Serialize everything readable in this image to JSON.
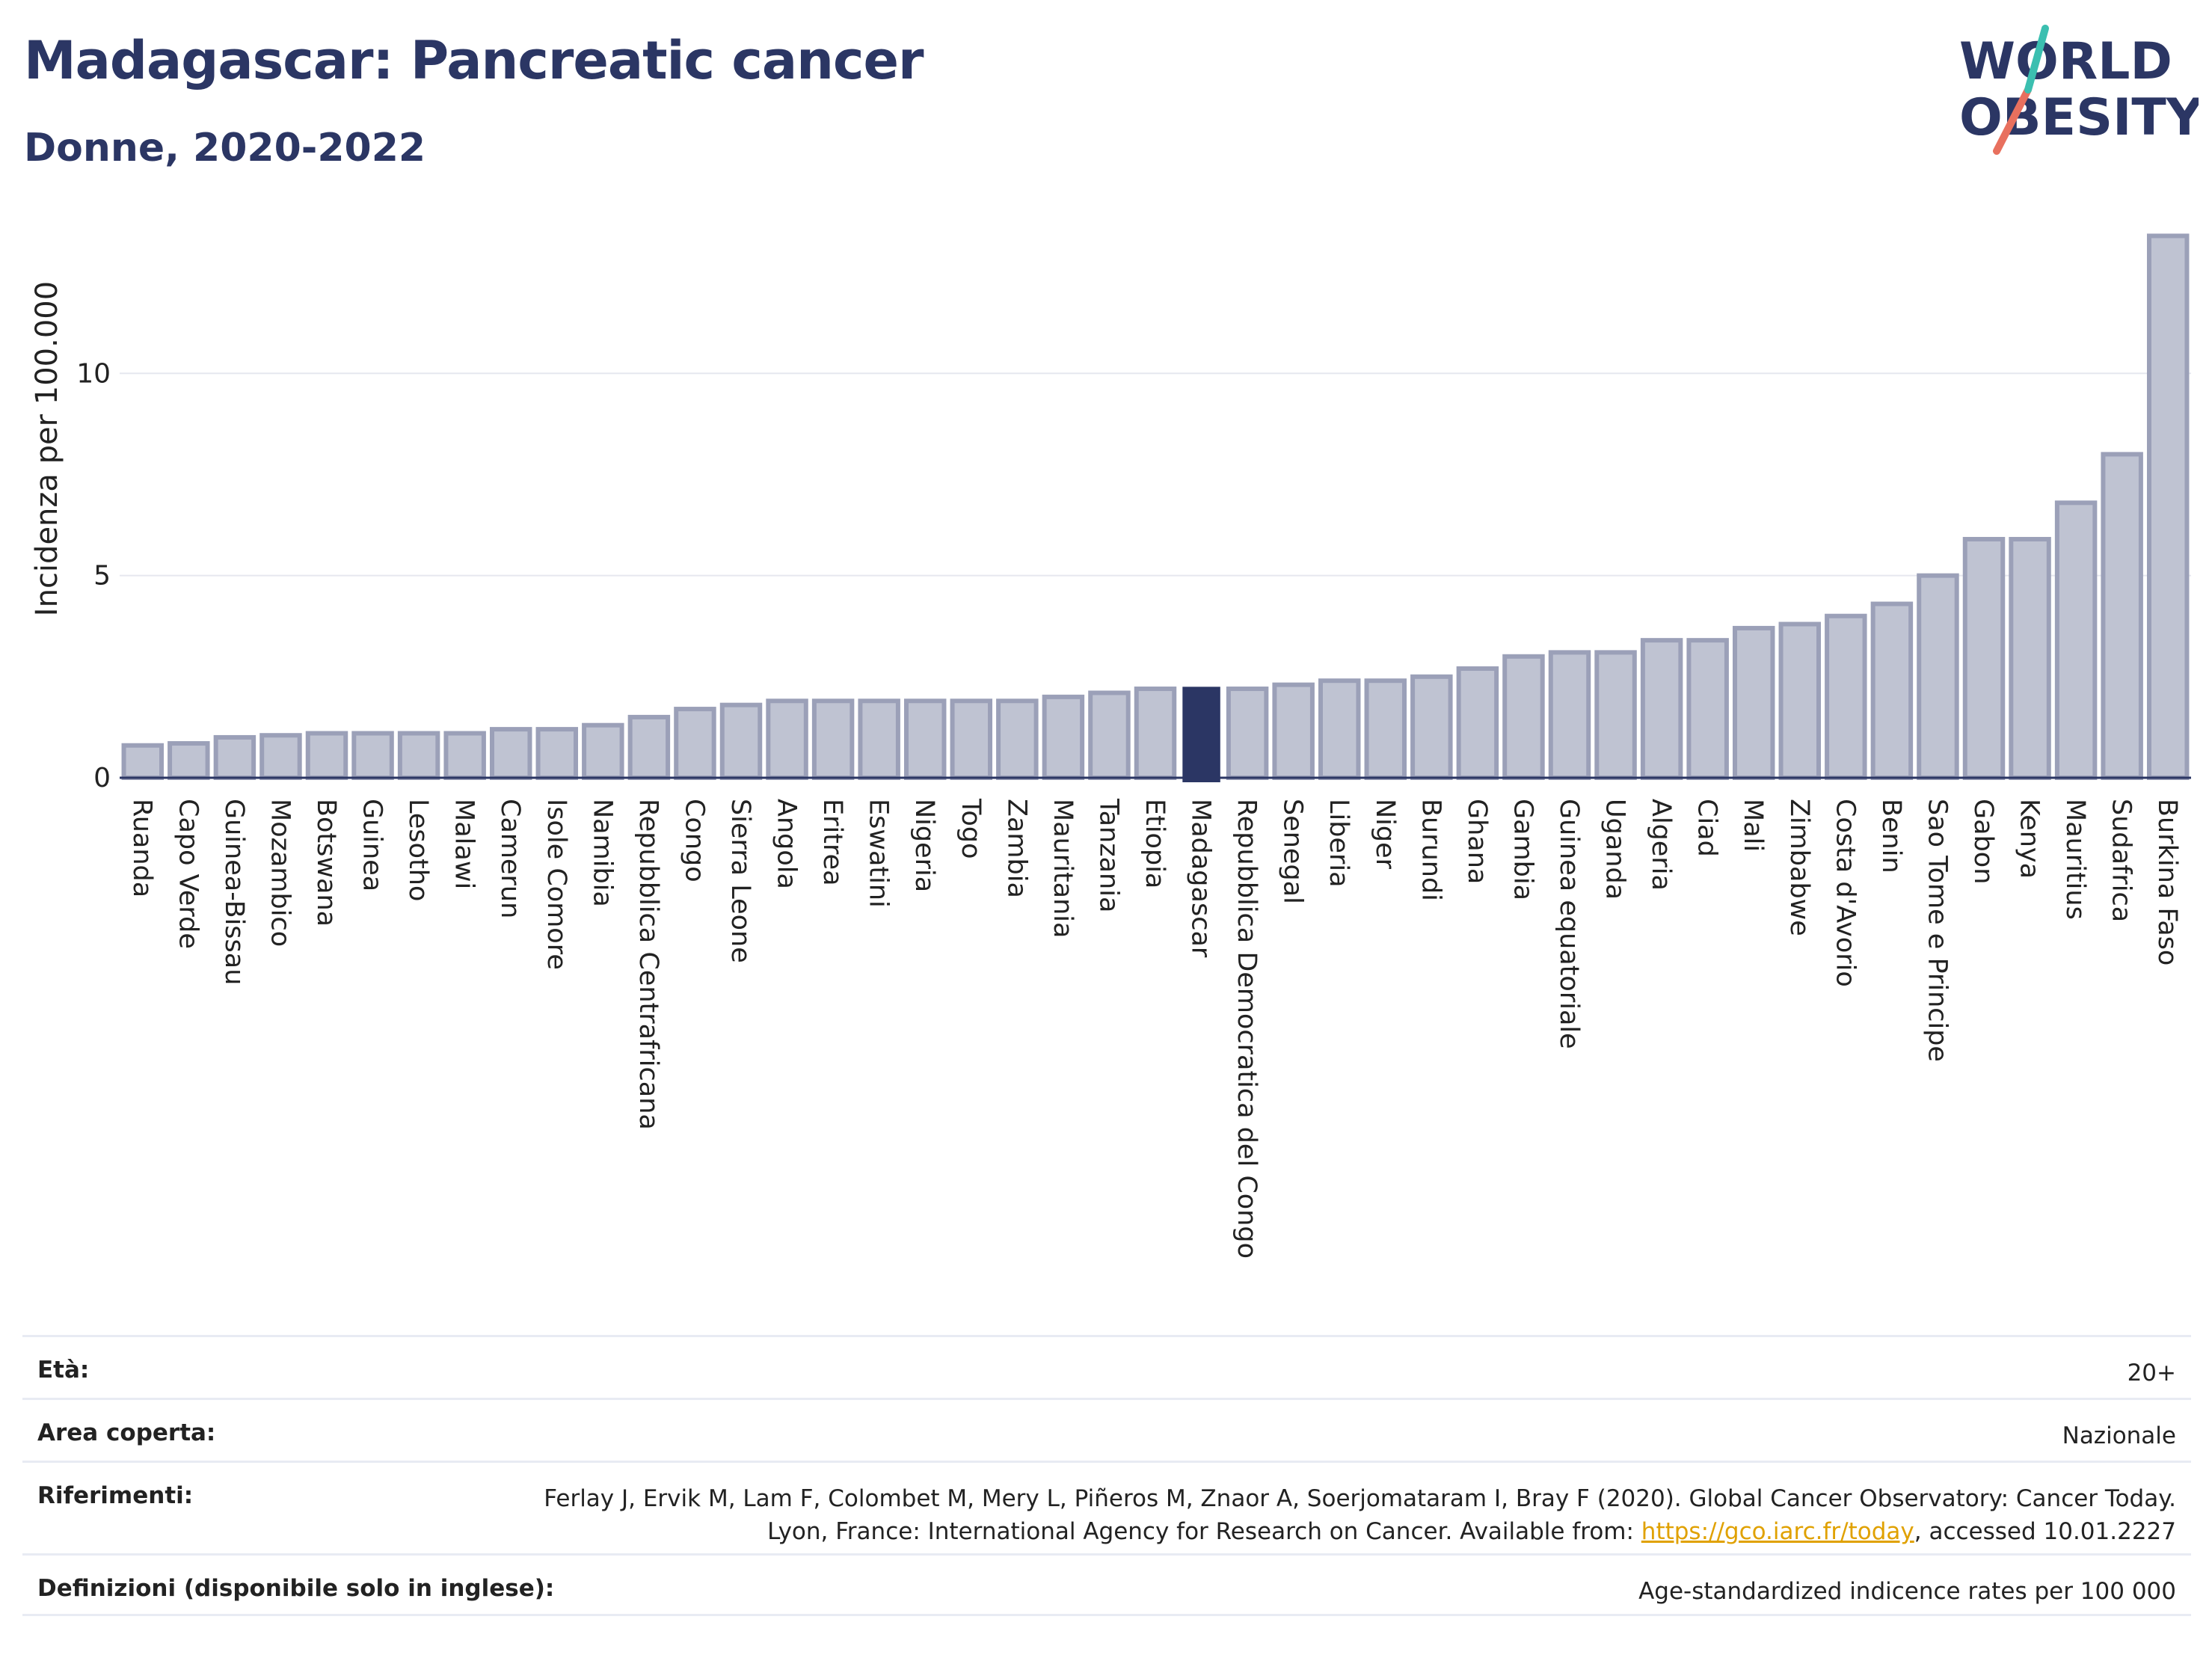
{
  "header": {
    "title": "Madagascar: Pancreatic cancer",
    "subtitle": "Donne, 2020-2022"
  },
  "logo": {
    "line1": "WORLD",
    "line2": "OBESITY"
  },
  "colors": {
    "bar_fill": "#bfc3d2",
    "bar_stroke": "#9ba0b8",
    "highlight": "#2b3664",
    "title": "#2b3664",
    "grid": "#e6e8ef",
    "logo_teal": "#3bbfb0",
    "logo_coral": "#e8705e",
    "link": "#e0a100"
  },
  "chart_data": {
    "type": "bar",
    "ylabel": "Incidenza per 100.000",
    "xlabel": "",
    "ylim": [
      0,
      13.5
    ],
    "yticks": [
      0,
      5,
      10
    ],
    "grid": true,
    "highlight": "Madagascar",
    "categories": [
      "Ruanda",
      "Capo Verde",
      "Guinea-Bissau",
      "Mozambico",
      "Botswana",
      "Guinea",
      "Lesotho",
      "Malawi",
      "Camerun",
      "Isole Comore",
      "Namibia",
      "Repubblica Centrafricana",
      "Congo",
      "Sierra Leone",
      "Angola",
      "Eritrea",
      "Eswatini",
      "Nigeria",
      "Togo",
      "Zambia",
      "Mauritania",
      "Tanzania",
      "Etiopia",
      "Madagascar",
      "Repubblica Democratica del Congo",
      "Senegal",
      "Liberia",
      "Niger",
      "Burundi",
      "Ghana",
      "Gambia",
      "Guinea equatoriale",
      "Uganda",
      "Algeria",
      "Ciad",
      "Mali",
      "Zimbabwe",
      "Costa d'Avorio",
      "Benin",
      "Sao Tome e Principe",
      "Gabon",
      "Kenya",
      "Mauritius",
      "Sudafrica",
      "Burkina Faso"
    ],
    "values": [
      0.8,
      0.85,
      1.0,
      1.05,
      1.1,
      1.1,
      1.1,
      1.1,
      1.2,
      1.2,
      1.3,
      1.5,
      1.7,
      1.8,
      1.9,
      1.9,
      1.9,
      1.9,
      1.9,
      1.9,
      2.0,
      2.1,
      2.2,
      2.25,
      2.2,
      2.3,
      2.4,
      2.4,
      2.5,
      2.7,
      3.0,
      3.1,
      3.1,
      3.4,
      3.4,
      3.7,
      3.8,
      4.0,
      4.3,
      5.0,
      5.9,
      5.9,
      6.8,
      8.0,
      13.4
    ]
  },
  "meta": {
    "age_label": "Età:",
    "age_value": "20+",
    "area_label": "Area coperta:",
    "area_value": "Nazionale",
    "refs_label": "Riferimenti:",
    "refs_text_1": "Ferlay J, Ervik M, Lam F, Colombet M, Mery L, Piñeros M, Znaor A, Soerjomataram I, Bray F (2020). Global Cancer Observatory: Cancer Today. Lyon, France: International Agency for Research on Cancer. Available from: ",
    "refs_link": "https://gco.iarc.fr/today",
    "refs_text_2": ", accessed 10.01.2227",
    "defs_label": "Definizioni (disponibile solo in inglese):",
    "defs_value": "Age-standardized indicence rates per 100 000"
  }
}
